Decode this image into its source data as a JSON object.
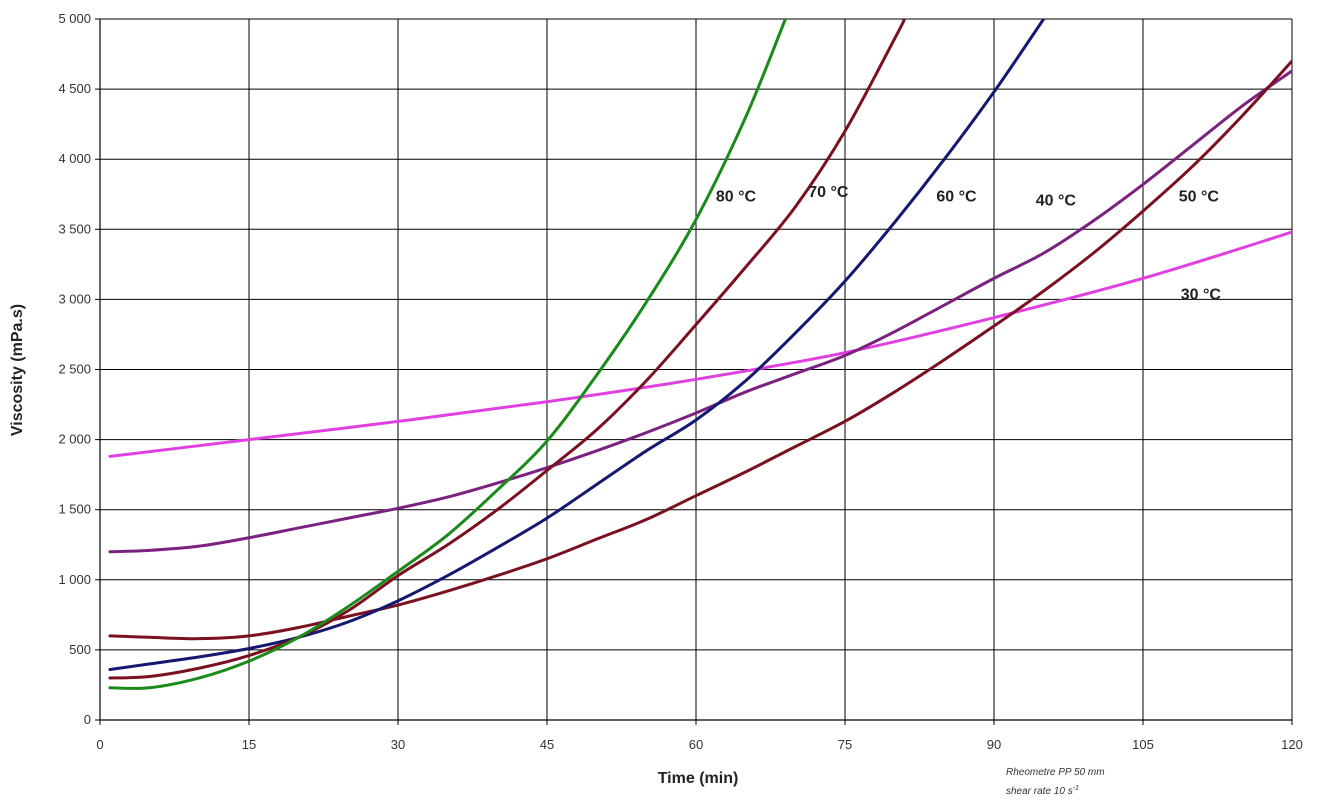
{
  "chart_data": {
    "type": "line",
    "xlabel": "Time (min)",
    "ylabel": "Viscosity (mPa.s)",
    "xlim": [
      0,
      120
    ],
    "ylim": [
      0,
      5000
    ],
    "x_ticks": [
      0,
      15,
      30,
      45,
      60,
      75,
      90,
      105,
      120
    ],
    "x_tick_labels": [
      "0",
      "15",
      "30",
      "45",
      "60",
      "75",
      "90",
      "105",
      "120"
    ],
    "y_ticks": [
      0,
      500,
      1000,
      1500,
      2000,
      2500,
      3000,
      3500,
      4000,
      4500,
      5000
    ],
    "y_tick_labels": [
      "0",
      "500",
      "1 000",
      "1 500",
      "2 000",
      "2 500",
      "3 000",
      "3 500",
      "4 000",
      "4 500",
      "5 000"
    ],
    "grid": true,
    "legend": "none",
    "note": {
      "line1": "Rheometre PP 50 mm",
      "line2": "shear rate 10 s",
      "line2_sup": "-1"
    },
    "series": [
      {
        "name": "30 °C",
        "color": "#e040e0",
        "x": [
          1,
          15,
          30,
          45,
          60,
          75,
          90,
          105,
          120
        ],
        "y": [
          1880,
          2000,
          2130,
          2270,
          2430,
          2620,
          2870,
          3150,
          3480
        ]
      },
      {
        "name": "40 °C",
        "color": "#7b2180",
        "x": [
          1,
          5,
          10,
          15,
          20,
          25,
          30,
          35,
          40,
          45,
          50,
          55,
          60,
          65,
          70,
          75,
          80,
          85,
          90,
          95,
          100,
          105,
          110,
          115,
          120
        ],
        "y": [
          1200,
          1210,
          1240,
          1300,
          1370,
          1440,
          1510,
          1590,
          1690,
          1800,
          1920,
          2050,
          2190,
          2340,
          2470,
          2600,
          2770,
          2960,
          3150,
          3330,
          3560,
          3820,
          4100,
          4380,
          4630
        ]
      },
      {
        "name": "50 °C",
        "color": "#7a1020",
        "x": [
          1,
          5,
          10,
          15,
          20,
          25,
          30,
          35,
          40,
          45,
          50,
          55,
          60,
          65,
          70,
          75,
          80,
          85,
          90,
          95,
          100,
          105,
          110,
          115,
          120
        ],
        "y": [
          600,
          590,
          580,
          600,
          660,
          740,
          820,
          920,
          1030,
          1150,
          1290,
          1430,
          1600,
          1770,
          1950,
          2130,
          2340,
          2570,
          2810,
          3060,
          3330,
          3630,
          3950,
          4310,
          4700
        ]
      },
      {
        "name": "60 °C",
        "color": "#141870",
        "x": [
          1,
          5,
          10,
          15,
          20,
          25,
          30,
          35,
          40,
          45,
          50,
          55,
          60,
          65,
          70,
          75,
          80,
          85,
          90,
          95
        ],
        "y": [
          360,
          400,
          450,
          510,
          590,
          700,
          850,
          1030,
          1230,
          1440,
          1680,
          1920,
          2140,
          2420,
          2760,
          3130,
          3550,
          4000,
          4480,
          5000
        ]
      },
      {
        "name": "70 °C",
        "color": "#7a1020",
        "x": [
          1,
          5,
          10,
          15,
          20,
          25,
          30,
          35,
          40,
          45,
          50,
          55,
          60,
          65,
          70,
          75,
          80,
          81
        ],
        "y": [
          300,
          310,
          370,
          460,
          590,
          780,
          1030,
          1250,
          1500,
          1780,
          2070,
          2420,
          2820,
          3230,
          3660,
          4200,
          4860,
          5000
        ]
      },
      {
        "name": "80 °C",
        "color": "#1a8a1a",
        "x": [
          1,
          5,
          10,
          15,
          20,
          25,
          30,
          35,
          40,
          45,
          50,
          55,
          60,
          65,
          69
        ],
        "y": [
          230,
          230,
          300,
          420,
          590,
          810,
          1060,
          1320,
          1640,
          1990,
          2460,
          2980,
          3570,
          4300,
          5000
        ]
      }
    ],
    "annotations": [
      {
        "text": "80 °C",
        "x": 62,
        "y": 3700
      },
      {
        "text": "70 °C",
        "x": 71.3,
        "y": 3730
      },
      {
        "text": "60 °C",
        "x": 84.2,
        "y": 3700
      },
      {
        "text": "40 °C",
        "x": 94.2,
        "y": 3670
      },
      {
        "text": "50 °C",
        "x": 108.6,
        "y": 3700
      },
      {
        "text": "30 °C",
        "x": 108.8,
        "y": 3000
      }
    ]
  }
}
